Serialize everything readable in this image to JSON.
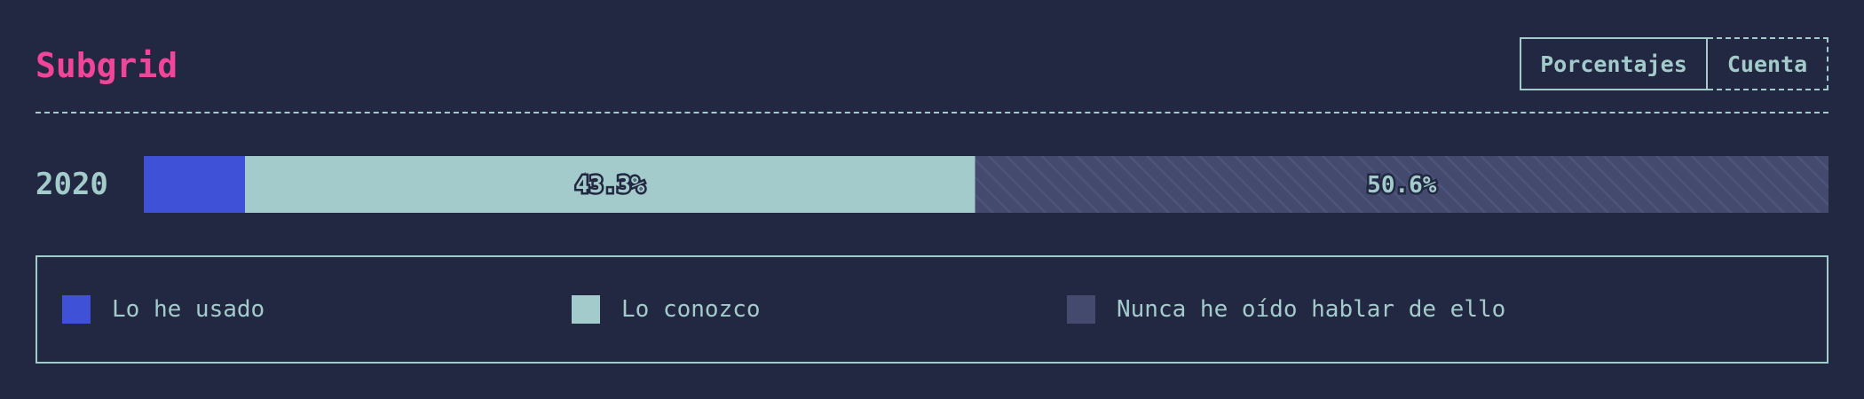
{
  "header": {
    "title": "Subgrid",
    "toggle": {
      "active_label": "Porcentajes",
      "inactive_label": "Cuenta"
    }
  },
  "chart_data": {
    "type": "bar",
    "orientation": "horizontal",
    "stacked": true,
    "categories": [
      "2020"
    ],
    "series": [
      {
        "name": "Lo he usado",
        "values": [
          6.0
        ],
        "label": "",
        "color": "#3f51d6"
      },
      {
        "name": "Lo conozco",
        "values": [
          43.3
        ],
        "label": "43.3%",
        "color": "#a3cbcb"
      },
      {
        "name": "Nunca he oído hablar de ello",
        "values": [
          50.6
        ],
        "label": "50.6%",
        "color": "#434a6e"
      }
    ],
    "xlim": [
      0,
      100
    ],
    "grid": false,
    "legend_placement": "bottom"
  }
}
